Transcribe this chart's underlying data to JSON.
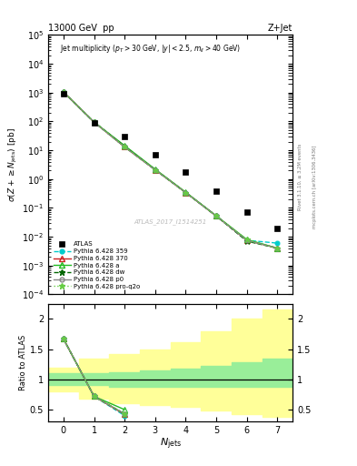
{
  "title_left": "13000 GeV  pp",
  "title_right": "Z+Jet",
  "annotation": "Jet multiplicity ($p_T > 30$ GeV, $|y| < 2.5$, $m_{ll} > 40$ GeV)",
  "watermark": "ATLAS_2017_I1514251",
  "right_text_top": "Rivet 3.1.10, ≥ 3.2M events",
  "right_text_bot": "mcplots.cern.ch [arXiv:1306.3436]",
  "ylabel_main": "$\\sigma(Z + \\geq N_{\\rm jets})$ [pb]",
  "ylabel_ratio": "Ratio to ATLAS",
  "xlabel": "$N_{\\rm jets}$",
  "xlim": [
    -0.5,
    7.5
  ],
  "ylim_main": [
    0.0001,
    100000.0
  ],
  "ylim_ratio": [
    0.3,
    2.25
  ],
  "atlas_x": [
    0,
    1,
    2,
    3,
    4,
    5,
    6,
    7
  ],
  "atlas_y": [
    900,
    90,
    30,
    7,
    1.7,
    0.38,
    0.07,
    0.02
  ],
  "series": [
    {
      "label": "Pythia 6.428 359",
      "color": "#00CCCC",
      "linestyle": "--",
      "marker": "o",
      "markersize": 3.5,
      "x": [
        0,
        1,
        2,
        3,
        4,
        5,
        6,
        7
      ],
      "y": [
        1050,
        95,
        13.0,
        2.1,
        0.34,
        0.052,
        0.0075,
        0.006
      ]
    },
    {
      "label": "Pythia 6.428 370",
      "color": "#CC2222",
      "linestyle": "-",
      "marker": "^",
      "markersize": 4,
      "x": [
        0,
        1,
        2,
        3,
        4,
        5,
        6,
        7
      ],
      "y": [
        1050,
        95,
        13.0,
        2.1,
        0.34,
        0.052,
        0.0075,
        0.004
      ]
    },
    {
      "label": "Pythia 6.428 a",
      "color": "#22BB22",
      "linestyle": "-",
      "marker": "^",
      "markersize": 4,
      "x": [
        0,
        1,
        2,
        3,
        4,
        5,
        6,
        7
      ],
      "y": [
        1050,
        95,
        14.5,
        2.2,
        0.35,
        0.053,
        0.008,
        0.004
      ]
    },
    {
      "label": "Pythia 6.428 dw",
      "color": "#006600",
      "linestyle": "--",
      "marker": "*",
      "markersize": 5,
      "x": [
        0,
        1,
        2,
        3,
        4,
        5,
        6,
        7
      ],
      "y": [
        1050,
        95,
        13.5,
        2.1,
        0.34,
        0.052,
        0.007,
        0.004
      ]
    },
    {
      "label": "Pythia 6.428 p0",
      "color": "#888888",
      "linestyle": "-",
      "marker": "o",
      "markersize": 3.5,
      "x": [
        0,
        1,
        2,
        3,
        4,
        5,
        6,
        7
      ],
      "y": [
        1050,
        95,
        13.0,
        2.1,
        0.34,
        0.052,
        0.0075,
        0.004
      ]
    },
    {
      "label": "Pythia 6.428 pro-q2o",
      "color": "#66CC44",
      "linestyle": ":",
      "marker": "*",
      "markersize": 5,
      "x": [
        0,
        1,
        2,
        3,
        4,
        5,
        6,
        7
      ],
      "y": [
        1050,
        95,
        13.0,
        2.1,
        0.34,
        0.052,
        0.008,
        0.004
      ]
    }
  ],
  "ratio_series": [
    {
      "x": [
        0,
        1,
        2
      ],
      "y": [
        1.67,
        0.72,
        0.4
      ],
      "color": "#00CCCC",
      "linestyle": "--",
      "marker": "o",
      "ms": 3.5
    },
    {
      "x": [
        0,
        1,
        2
      ],
      "y": [
        1.67,
        0.72,
        0.42
      ],
      "color": "#CC2222",
      "linestyle": "-",
      "marker": "^",
      "ms": 4
    },
    {
      "x": [
        0,
        1,
        2
      ],
      "y": [
        1.67,
        0.72,
        0.5
      ],
      "color": "#22BB22",
      "linestyle": "-",
      "marker": "^",
      "ms": 4
    },
    {
      "x": [
        0,
        1,
        2
      ],
      "y": [
        1.67,
        0.72,
        0.43
      ],
      "color": "#006600",
      "linestyle": "--",
      "marker": "*",
      "ms": 5
    },
    {
      "x": [
        0,
        1,
        2
      ],
      "y": [
        1.67,
        0.72,
        0.43
      ],
      "color": "#888888",
      "linestyle": "-",
      "marker": "o",
      "ms": 3.5
    },
    {
      "x": [
        0,
        1,
        2
      ],
      "y": [
        1.67,
        0.72,
        0.43
      ],
      "color": "#66CC44",
      "linestyle": ":",
      "marker": "*",
      "ms": 5
    }
  ],
  "bin_edges": [
    -0.5,
    0.5,
    1.5,
    2.5,
    3.5,
    4.5,
    5.5,
    6.5,
    7.5
  ],
  "yellow_lo": [
    0.8,
    0.68,
    0.6,
    0.58,
    0.55,
    0.48,
    0.42,
    0.38
  ],
  "yellow_hi": [
    1.2,
    1.35,
    1.42,
    1.5,
    1.62,
    1.8,
    2.0,
    2.15
  ],
  "green_lo": [
    0.9,
    0.9,
    0.88,
    0.87,
    0.87,
    0.87,
    0.87,
    0.87
  ],
  "green_hi": [
    1.1,
    1.1,
    1.12,
    1.15,
    1.18,
    1.22,
    1.28,
    1.35
  ]
}
